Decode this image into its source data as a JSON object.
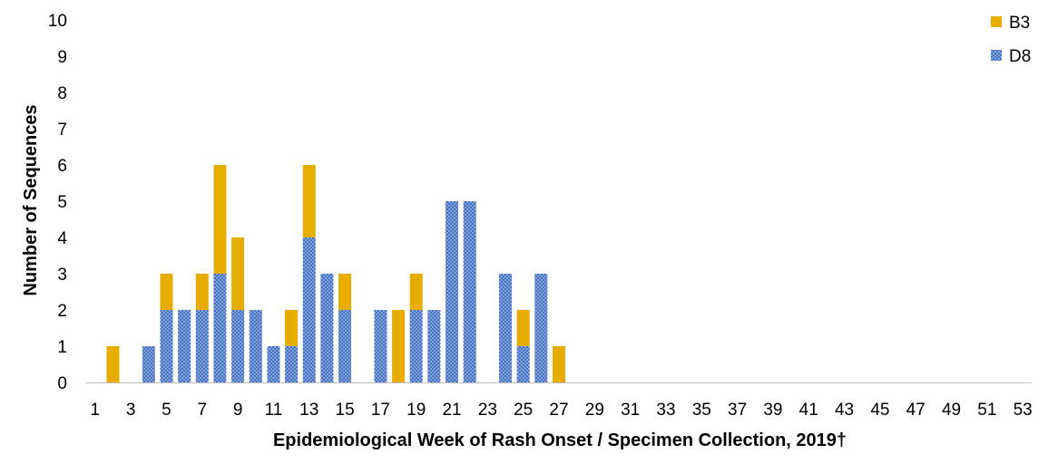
{
  "chart_data": {
    "type": "bar",
    "stacked": true,
    "title": "",
    "xlabel": "Epidemiological Week of Rash Onset / Specimen Collection, 2019†",
    "ylabel": "Number of Sequences",
    "ylim": [
      0,
      10
    ],
    "y_ticks": [
      "0",
      "1",
      "2",
      "3",
      "4",
      "5",
      "6",
      "7",
      "8",
      "9",
      "10"
    ],
    "x_ticks": [
      "1",
      "3",
      "5",
      "7",
      "9",
      "11",
      "13",
      "15",
      "17",
      "19",
      "21",
      "23",
      "25",
      "27",
      "29",
      "31",
      "33",
      "35",
      "37",
      "39",
      "41",
      "43",
      "45",
      "47",
      "49",
      "51",
      "53"
    ],
    "categories": [
      1,
      2,
      3,
      4,
      5,
      6,
      7,
      8,
      9,
      10,
      11,
      12,
      13,
      14,
      15,
      16,
      17,
      18,
      19,
      20,
      21,
      22,
      23,
      24,
      25,
      26,
      27,
      28,
      29,
      30,
      31,
      32,
      33,
      34,
      35,
      36,
      37,
      38,
      39,
      40,
      41,
      42,
      43,
      44,
      45,
      46,
      47,
      48,
      49,
      50,
      51,
      52,
      53
    ],
    "legend_position": "top-right",
    "series": [
      {
        "name": "D8",
        "color": "#4472C4",
        "values": [
          0,
          0,
          0,
          1,
          2,
          2,
          2,
          3,
          2,
          2,
          1,
          1,
          4,
          3,
          2,
          0,
          2,
          0,
          2,
          2,
          5,
          5,
          0,
          3,
          1,
          3,
          0,
          0,
          0,
          0,
          0,
          0,
          0,
          0,
          0,
          0,
          0,
          0,
          0,
          0,
          0,
          0,
          0,
          0,
          0,
          0,
          0,
          0,
          0,
          0,
          0,
          0,
          0
        ]
      },
      {
        "name": "B3",
        "color": "#E6AC00",
        "values": [
          0,
          1,
          0,
          0,
          1,
          0,
          1,
          3,
          2,
          0,
          0,
          1,
          2,
          0,
          1,
          0,
          0,
          2,
          1,
          0,
          0,
          0,
          0,
          0,
          1,
          0,
          1,
          0,
          0,
          0,
          0,
          0,
          0,
          0,
          0,
          0,
          0,
          0,
          0,
          0,
          0,
          0,
          0,
          0,
          0,
          0,
          0,
          0,
          0,
          0,
          0,
          0,
          0
        ]
      }
    ],
    "legend": [
      "B3",
      "D8"
    ]
  }
}
